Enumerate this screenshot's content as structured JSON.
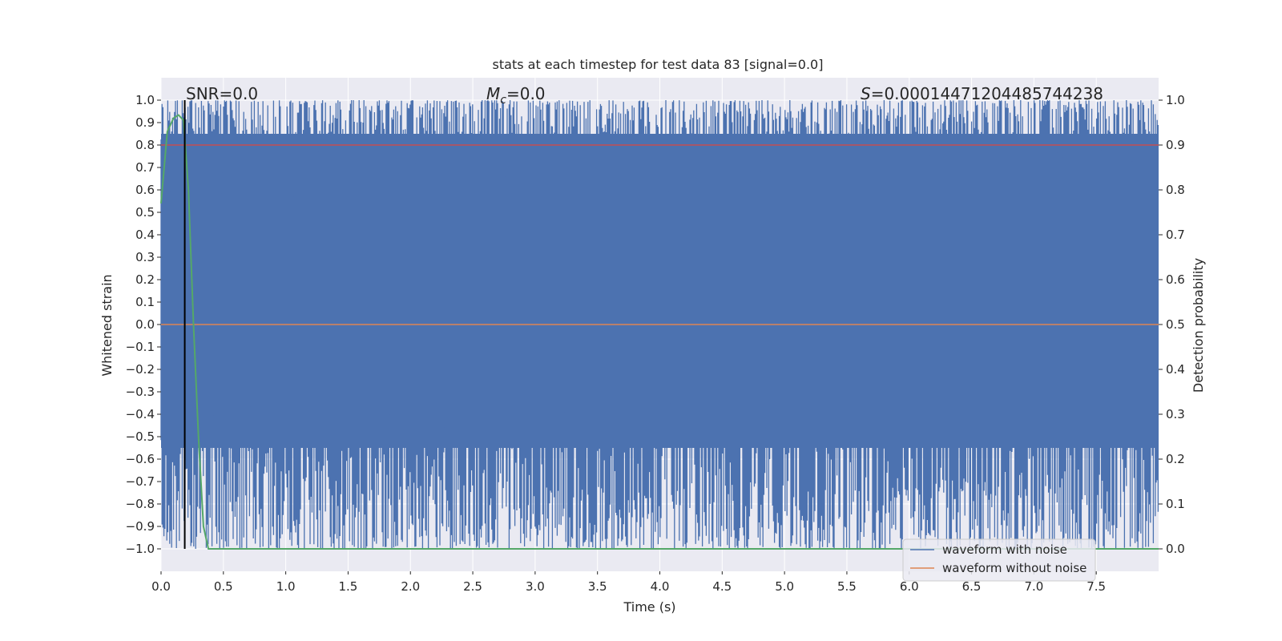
{
  "chart_data": {
    "type": "line",
    "title": "stats at each timestep for test data 83 [signal=0.0]",
    "xlabel": "Time (s)",
    "ylabel": "Whitened strain",
    "y2label": "Detection probability",
    "xlim": [
      0.0,
      8.0
    ],
    "ylim": [
      -1.1,
      1.1
    ],
    "y2lim": [
      -0.05,
      1.05
    ],
    "x_ticks": [
      0.0,
      0.5,
      1.0,
      1.5,
      2.0,
      2.5,
      3.0,
      3.5,
      4.0,
      4.5,
      5.0,
      5.5,
      6.0,
      6.5,
      7.0,
      7.5
    ],
    "x_tick_labels": [
      "0.0",
      "0.5",
      "1.0",
      "1.5",
      "2.0",
      "2.5",
      "3.0",
      "3.5",
      "4.0",
      "4.5",
      "5.0",
      "5.5",
      "6.0",
      "6.5",
      "7.0",
      "7.5"
    ],
    "y_ticks": [
      1.0,
      0.9,
      0.8,
      0.7,
      0.6,
      0.5,
      0.4,
      0.3,
      0.2,
      0.1,
      0.0,
      -0.1,
      -0.2,
      -0.3,
      -0.4,
      -0.5,
      -0.6,
      -0.7,
      -0.8,
      -0.9,
      -1.0
    ],
    "y_tick_labels": [
      "1.0",
      "0.9",
      "0.8",
      "0.7",
      "0.6",
      "0.5",
      "0.4",
      "0.3",
      "0.2",
      "0.1",
      "0.0",
      "−0.1",
      "−0.2",
      "−0.3",
      "−0.4",
      "−0.5",
      "−0.6",
      "−0.7",
      "−0.8",
      "−0.9",
      "−1.0"
    ],
    "y2_ticks": [
      1.0,
      0.9,
      0.8,
      0.7,
      0.6,
      0.5,
      0.4,
      0.3,
      0.2,
      0.1,
      0.0
    ],
    "y2_tick_labels": [
      "1.0",
      "0.9",
      "0.8",
      "0.7",
      "0.6",
      "0.5",
      "0.4",
      "0.3",
      "0.2",
      "0.1",
      "0.0"
    ],
    "annotations": {
      "snr": "SNR=0.0",
      "mc_symbol": "M",
      "mc_sub": "c",
      "mc_value": "=0.0",
      "s_symbol": "S",
      "s_value": "=0.00014471204485744238"
    },
    "series": [
      {
        "name": "waveform with noise",
        "color": "#4c72b0",
        "description": "dense whitened-strain noise spanning approximately -1.0 to 1.0 across the full 0–8 s window",
        "envelope": {
          "min": -1.0,
          "max": 1.0
        }
      },
      {
        "name": "waveform without noise",
        "color": "#dd8452",
        "values_note": "flat at 0.0 whitened strain",
        "x": [
          0.0,
          8.0
        ],
        "y": [
          0.0,
          0.0
        ]
      },
      {
        "name": "detection probability",
        "color": "#55a868",
        "axis": "right",
        "x": [
          0.0,
          0.05,
          0.1,
          0.14,
          0.18,
          0.22,
          0.26,
          0.3,
          0.34,
          0.38,
          0.4,
          8.0
        ],
        "y": [
          0.77,
          0.93,
          0.96,
          0.967,
          0.955,
          0.8,
          0.5,
          0.25,
          0.05,
          0.0,
          0.0,
          0.0
        ]
      }
    ],
    "horizontal_lines": [
      {
        "axis": "right",
        "value": 0.9,
        "color": "#c44e52"
      }
    ],
    "vertical_lines": [
      {
        "x": 0.19,
        "color": "#000000"
      }
    ],
    "legend": {
      "position": "lower-right",
      "entries": [
        {
          "label": "waveform with noise",
          "color": "#4c72b0"
        },
        {
          "label": "waveform without noise",
          "color": "#dd8452"
        }
      ]
    },
    "style": {
      "background": "#eaeaf2",
      "grid": true,
      "grid_color": "#ffffff"
    }
  }
}
